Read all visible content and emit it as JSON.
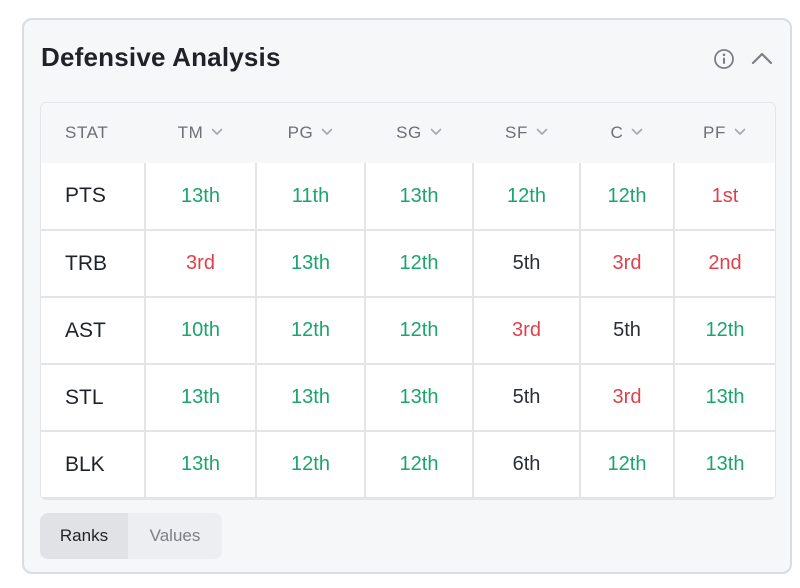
{
  "card": {
    "title": "Defensive Analysis",
    "info_icon": "info-circle-icon",
    "collapse_icon": "chevron-up-icon"
  },
  "table": {
    "headers": [
      "STAT",
      "TM",
      "PG",
      "SG",
      "SF",
      "C",
      "PF"
    ],
    "rows": [
      {
        "stat": "PTS",
        "cells": [
          {
            "text": "13th",
            "tone": "good"
          },
          {
            "text": "11th",
            "tone": "good"
          },
          {
            "text": "13th",
            "tone": "good"
          },
          {
            "text": "12th",
            "tone": "good"
          },
          {
            "text": "12th",
            "tone": "good"
          },
          {
            "text": "1st",
            "tone": "bad"
          }
        ]
      },
      {
        "stat": "TRB",
        "cells": [
          {
            "text": "3rd",
            "tone": "bad"
          },
          {
            "text": "13th",
            "tone": "good"
          },
          {
            "text": "12th",
            "tone": "good"
          },
          {
            "text": "5th",
            "tone": "mid"
          },
          {
            "text": "3rd",
            "tone": "bad"
          },
          {
            "text": "2nd",
            "tone": "bad"
          }
        ]
      },
      {
        "stat": "AST",
        "cells": [
          {
            "text": "10th",
            "tone": "good"
          },
          {
            "text": "12th",
            "tone": "good"
          },
          {
            "text": "12th",
            "tone": "good"
          },
          {
            "text": "3rd",
            "tone": "bad"
          },
          {
            "text": "5th",
            "tone": "mid"
          },
          {
            "text": "12th",
            "tone": "good"
          }
        ]
      },
      {
        "stat": "STL",
        "cells": [
          {
            "text": "13th",
            "tone": "good"
          },
          {
            "text": "13th",
            "tone": "good"
          },
          {
            "text": "13th",
            "tone": "good"
          },
          {
            "text": "5th",
            "tone": "mid"
          },
          {
            "text": "3rd",
            "tone": "bad"
          },
          {
            "text": "13th",
            "tone": "good"
          }
        ]
      },
      {
        "stat": "BLK",
        "cells": [
          {
            "text": "13th",
            "tone": "good"
          },
          {
            "text": "12th",
            "tone": "good"
          },
          {
            "text": "12th",
            "tone": "good"
          },
          {
            "text": "6th",
            "tone": "mid"
          },
          {
            "text": "12th",
            "tone": "good"
          },
          {
            "text": "13th",
            "tone": "good"
          }
        ]
      }
    ]
  },
  "toggle": {
    "options": [
      "Ranks",
      "Values"
    ],
    "selected": "Ranks"
  },
  "colors": {
    "good": "#1aa56c",
    "bad": "#e0404a",
    "neutral": "#2b2f35"
  }
}
